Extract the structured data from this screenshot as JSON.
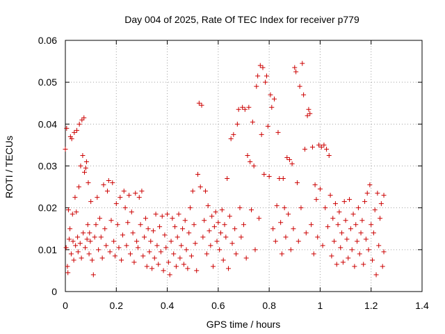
{
  "chart_data": {
    "type": "scatter",
    "title": "Day 004 of 2025, Rate Of TEC Index for receiver p779",
    "xlabel": "GPS time / hours",
    "ylabel": "ROTI / TECUs",
    "xlim": [
      0,
      1.4
    ],
    "ylim": [
      0,
      0.06
    ],
    "xticks": [
      0,
      0.2,
      0.4,
      0.6,
      0.8,
      1,
      1.2,
      1.4
    ],
    "xtick_labels": [
      "0",
      "0.2",
      "0.4",
      "0.6",
      "0.8",
      "1",
      "1.2",
      "1.4"
    ],
    "yticks": [
      0,
      0.01,
      0.02,
      0.03,
      0.04,
      0.05,
      0.06
    ],
    "ytick_labels": [
      "0",
      "0.01",
      "0.02",
      "0.03",
      "0.04",
      "0.05",
      "0.06"
    ],
    "grid": true,
    "marker": "+",
    "color": "#cc0000",
    "series": [
      {
        "name": "ROTI",
        "points": [
          [
            0.0,
            0.034
          ],
          [
            0.003,
            0.0105
          ],
          [
            0.005,
            0.039
          ],
          [
            0.008,
            0.006
          ],
          [
            0.01,
            0.0045
          ],
          [
            0.012,
            0.0195
          ],
          [
            0.015,
            0.0125
          ],
          [
            0.018,
            0.015
          ],
          [
            0.02,
            0.037
          ],
          [
            0.023,
            0.009
          ],
          [
            0.025,
            0.0365
          ],
          [
            0.028,
            0.0185
          ],
          [
            0.03,
            0.012
          ],
          [
            0.033,
            0.0075
          ],
          [
            0.035,
            0.038
          ],
          [
            0.038,
            0.0225
          ],
          [
            0.04,
            0.011
          ],
          [
            0.043,
            0.019
          ],
          [
            0.045,
            0.0385
          ],
          [
            0.048,
            0.013
          ],
          [
            0.05,
            0.0095
          ],
          [
            0.053,
            0.025
          ],
          [
            0.055,
            0.04
          ],
          [
            0.058,
            0.0115
          ],
          [
            0.06,
            0.03
          ],
          [
            0.063,
            0.008
          ],
          [
            0.065,
            0.041
          ],
          [
            0.068,
            0.0325
          ],
          [
            0.07,
            0.014
          ],
          [
            0.073,
            0.0415
          ],
          [
            0.075,
            0.0285
          ],
          [
            0.078,
            0.0105
          ],
          [
            0.08,
            0.0295
          ],
          [
            0.083,
            0.031
          ],
          [
            0.085,
            0.0125
          ],
          [
            0.088,
            0.016
          ],
          [
            0.09,
            0.026
          ],
          [
            0.093,
            0.009
          ],
          [
            0.095,
            0.014
          ],
          [
            0.098,
            0.012
          ],
          [
            0.1,
            0.0215
          ],
          [
            0.105,
            0.0075
          ],
          [
            0.11,
            0.004
          ],
          [
            0.115,
            0.013
          ],
          [
            0.12,
            0.016
          ],
          [
            0.125,
            0.0225
          ],
          [
            0.13,
            0.01
          ],
          [
            0.135,
            0.0175
          ],
          [
            0.14,
            0.013
          ],
          [
            0.145,
            0.008
          ],
          [
            0.15,
            0.0255
          ],
          [
            0.155,
            0.015
          ],
          [
            0.16,
            0.011
          ],
          [
            0.165,
            0.024
          ],
          [
            0.17,
            0.0265
          ],
          [
            0.175,
            0.0095
          ],
          [
            0.18,
            0.017
          ],
          [
            0.185,
            0.026
          ],
          [
            0.19,
            0.012
          ],
          [
            0.195,
            0.0085
          ],
          [
            0.2,
            0.021
          ],
          [
            0.205,
            0.016
          ],
          [
            0.21,
            0.0105
          ],
          [
            0.215,
            0.0225
          ],
          [
            0.22,
            0.0075
          ],
          [
            0.225,
            0.0135
          ],
          [
            0.23,
            0.024
          ],
          [
            0.235,
            0.02
          ],
          [
            0.24,
            0.011
          ],
          [
            0.245,
            0.0165
          ],
          [
            0.25,
            0.023
          ],
          [
            0.255,
            0.009
          ],
          [
            0.26,
            0.019
          ],
          [
            0.265,
            0.014
          ],
          [
            0.27,
            0.007
          ],
          [
            0.275,
            0.0235
          ],
          [
            0.28,
            0.012
          ],
          [
            0.285,
            0.0105
          ],
          [
            0.29,
            0.0225
          ],
          [
            0.295,
            0.016
          ],
          [
            0.3,
            0.024
          ],
          [
            0.305,
            0.0085
          ],
          [
            0.31,
            0.013
          ],
          [
            0.315,
            0.0175
          ],
          [
            0.32,
            0.006
          ],
          [
            0.325,
            0.015
          ],
          [
            0.33,
            0.0095
          ],
          [
            0.335,
            0.012
          ],
          [
            0.34,
            0.0055
          ],
          [
            0.345,
            0.0145
          ],
          [
            0.35,
            0.008
          ],
          [
            0.355,
            0.0185
          ],
          [
            0.36,
            0.011
          ],
          [
            0.365,
            0.0065
          ],
          [
            0.37,
            0.0155
          ],
          [
            0.375,
            0.0095
          ],
          [
            0.38,
            0.018
          ],
          [
            0.385,
            0.005
          ],
          [
            0.39,
            0.0135
          ],
          [
            0.395,
            0.0105
          ],
          [
            0.4,
            0.0185
          ],
          [
            0.405,
            0.007
          ],
          [
            0.41,
            0.004
          ],
          [
            0.415,
            0.012
          ],
          [
            0.42,
            0.0175
          ],
          [
            0.425,
            0.009
          ],
          [
            0.43,
            0.0155
          ],
          [
            0.435,
            0.006
          ],
          [
            0.44,
            0.013
          ],
          [
            0.445,
            0.0185
          ],
          [
            0.45,
            0.008
          ],
          [
            0.455,
            0.011
          ],
          [
            0.46,
            0.015
          ],
          [
            0.465,
            0.0065
          ],
          [
            0.47,
            0.017
          ],
          [
            0.475,
            0.01
          ],
          [
            0.48,
            0.0055
          ],
          [
            0.485,
            0.014
          ],
          [
            0.49,
            0.02
          ],
          [
            0.495,
            0.0085
          ],
          [
            0.5,
            0.024
          ],
          [
            0.505,
            0.016
          ],
          [
            0.51,
            0.0115
          ],
          [
            0.515,
            0.005
          ],
          [
            0.52,
            0.028
          ],
          [
            0.525,
            0.045
          ],
          [
            0.53,
            0.025
          ],
          [
            0.535,
            0.0445
          ],
          [
            0.54,
            0.013
          ],
          [
            0.545,
            0.017
          ],
          [
            0.55,
            0.024
          ],
          [
            0.555,
            0.009
          ],
          [
            0.56,
            0.0205
          ],
          [
            0.565,
            0.0145
          ],
          [
            0.57,
            0.011
          ],
          [
            0.575,
            0.018
          ],
          [
            0.58,
            0.006
          ],
          [
            0.585,
            0.0155
          ],
          [
            0.59,
            0.019
          ],
          [
            0.595,
            0.012
          ],
          [
            0.6,
            0.0165
          ],
          [
            0.605,
            0.01
          ],
          [
            0.61,
            0.014
          ],
          [
            0.615,
            0.0195
          ],
          [
            0.62,
            0.0075
          ],
          [
            0.625,
            0.016
          ],
          [
            0.63,
            0.013
          ],
          [
            0.635,
            0.027
          ],
          [
            0.64,
            0.0055
          ],
          [
            0.645,
            0.018
          ],
          [
            0.65,
            0.0365
          ],
          [
            0.655,
            0.0115
          ],
          [
            0.66,
            0.0375
          ],
          [
            0.665,
            0.015
          ],
          [
            0.67,
            0.009
          ],
          [
            0.675,
            0.04
          ],
          [
            0.68,
            0.0435
          ],
          [
            0.685,
            0.02
          ],
          [
            0.69,
            0.013
          ],
          [
            0.695,
            0.044
          ],
          [
            0.7,
            0.016
          ],
          [
            0.705,
            0.0435
          ],
          [
            0.71,
            0.008
          ],
          [
            0.715,
            0.0325
          ],
          [
            0.72,
            0.044
          ],
          [
            0.725,
            0.031
          ],
          [
            0.73,
            0.0195
          ],
          [
            0.735,
            0.0405
          ],
          [
            0.74,
            0.03
          ],
          [
            0.745,
            0.01
          ],
          [
            0.75,
            0.049
          ],
          [
            0.755,
            0.0515
          ],
          [
            0.76,
            0.0175
          ],
          [
            0.765,
            0.054
          ],
          [
            0.77,
            0.0375
          ],
          [
            0.775,
            0.0535
          ],
          [
            0.78,
            0.028
          ],
          [
            0.785,
            0.05
          ],
          [
            0.79,
            0.0515
          ],
          [
            0.795,
            0.0395
          ],
          [
            0.8,
            0.0275
          ],
          [
            0.805,
            0.047
          ],
          [
            0.81,
            0.044
          ],
          [
            0.815,
            0.015
          ],
          [
            0.82,
            0.046
          ],
          [
            0.825,
            0.012
          ],
          [
            0.83,
            0.0205
          ],
          [
            0.835,
            0.038
          ],
          [
            0.84,
            0.027
          ],
          [
            0.845,
            0.0165
          ],
          [
            0.85,
            0.009
          ],
          [
            0.855,
            0.027
          ],
          [
            0.86,
            0.02
          ],
          [
            0.865,
            0.013
          ],
          [
            0.87,
            0.032
          ],
          [
            0.875,
            0.0185
          ],
          [
            0.88,
            0.0315
          ],
          [
            0.885,
            0.01
          ],
          [
            0.89,
            0.0305
          ],
          [
            0.895,
            0.015
          ],
          [
            0.9,
            0.0535
          ],
          [
            0.905,
            0.0525
          ],
          [
            0.91,
            0.026
          ],
          [
            0.915,
            0.012
          ],
          [
            0.92,
            0.049
          ],
          [
            0.925,
            0.02
          ],
          [
            0.93,
            0.0545
          ],
          [
            0.935,
            0.047
          ],
          [
            0.94,
            0.034
          ],
          [
            0.945,
            0.014
          ],
          [
            0.95,
            0.042
          ],
          [
            0.955,
            0.0435
          ],
          [
            0.96,
            0.0425
          ],
          [
            0.965,
            0.016
          ],
          [
            0.97,
            0.0345
          ],
          [
            0.975,
            0.009
          ],
          [
            0.98,
            0.0255
          ],
          [
            0.985,
            0.022
          ],
          [
            0.99,
            0.013
          ],
          [
            0.995,
            0.035
          ],
          [
            1.0,
            0.0245
          ],
          [
            1.005,
            0.0345
          ],
          [
            1.01,
            0.011
          ],
          [
            1.015,
            0.035
          ],
          [
            1.02,
            0.02
          ],
          [
            1.025,
            0.034
          ],
          [
            1.03,
            0.0155
          ],
          [
            1.035,
            0.0325
          ],
          [
            1.04,
            0.023
          ],
          [
            1.045,
            0.0085
          ],
          [
            1.05,
            0.0175
          ],
          [
            1.055,
            0.012
          ],
          [
            1.06,
            0.021
          ],
          [
            1.065,
            0.0065
          ],
          [
            1.07,
            0.016
          ],
          [
            1.075,
            0.019
          ],
          [
            1.08,
            0.0105
          ],
          [
            1.085,
            0.014
          ],
          [
            1.09,
            0.007
          ],
          [
            1.095,
            0.0215
          ],
          [
            1.1,
            0.017
          ],
          [
            1.105,
            0.0125
          ],
          [
            1.11,
            0.008
          ],
          [
            1.115,
            0.022
          ],
          [
            1.12,
            0.015
          ],
          [
            1.125,
            0.01
          ],
          [
            1.13,
            0.0185
          ],
          [
            1.135,
            0.006
          ],
          [
            1.14,
            0.016
          ],
          [
            1.145,
            0.012
          ],
          [
            1.15,
            0.02
          ],
          [
            1.155,
            0.009
          ],
          [
            1.16,
            0.014
          ],
          [
            1.165,
            0.017
          ],
          [
            1.17,
            0.0065
          ],
          [
            1.175,
            0.0215
          ],
          [
            1.18,
            0.0125
          ],
          [
            1.185,
            0.0235
          ],
          [
            1.19,
            0.01
          ],
          [
            1.195,
            0.0255
          ],
          [
            1.2,
            0.016
          ],
          [
            1.205,
            0.0075
          ],
          [
            1.21,
            0.014
          ],
          [
            1.215,
            0.0195
          ],
          [
            1.22,
            0.004
          ],
          [
            1.225,
            0.0235
          ],
          [
            1.23,
            0.011
          ],
          [
            1.235,
            0.0175
          ],
          [
            1.24,
            0.021
          ],
          [
            1.245,
            0.006
          ],
          [
            1.25,
            0.023
          ],
          [
            1.25,
            0.0095
          ]
        ]
      }
    ]
  }
}
